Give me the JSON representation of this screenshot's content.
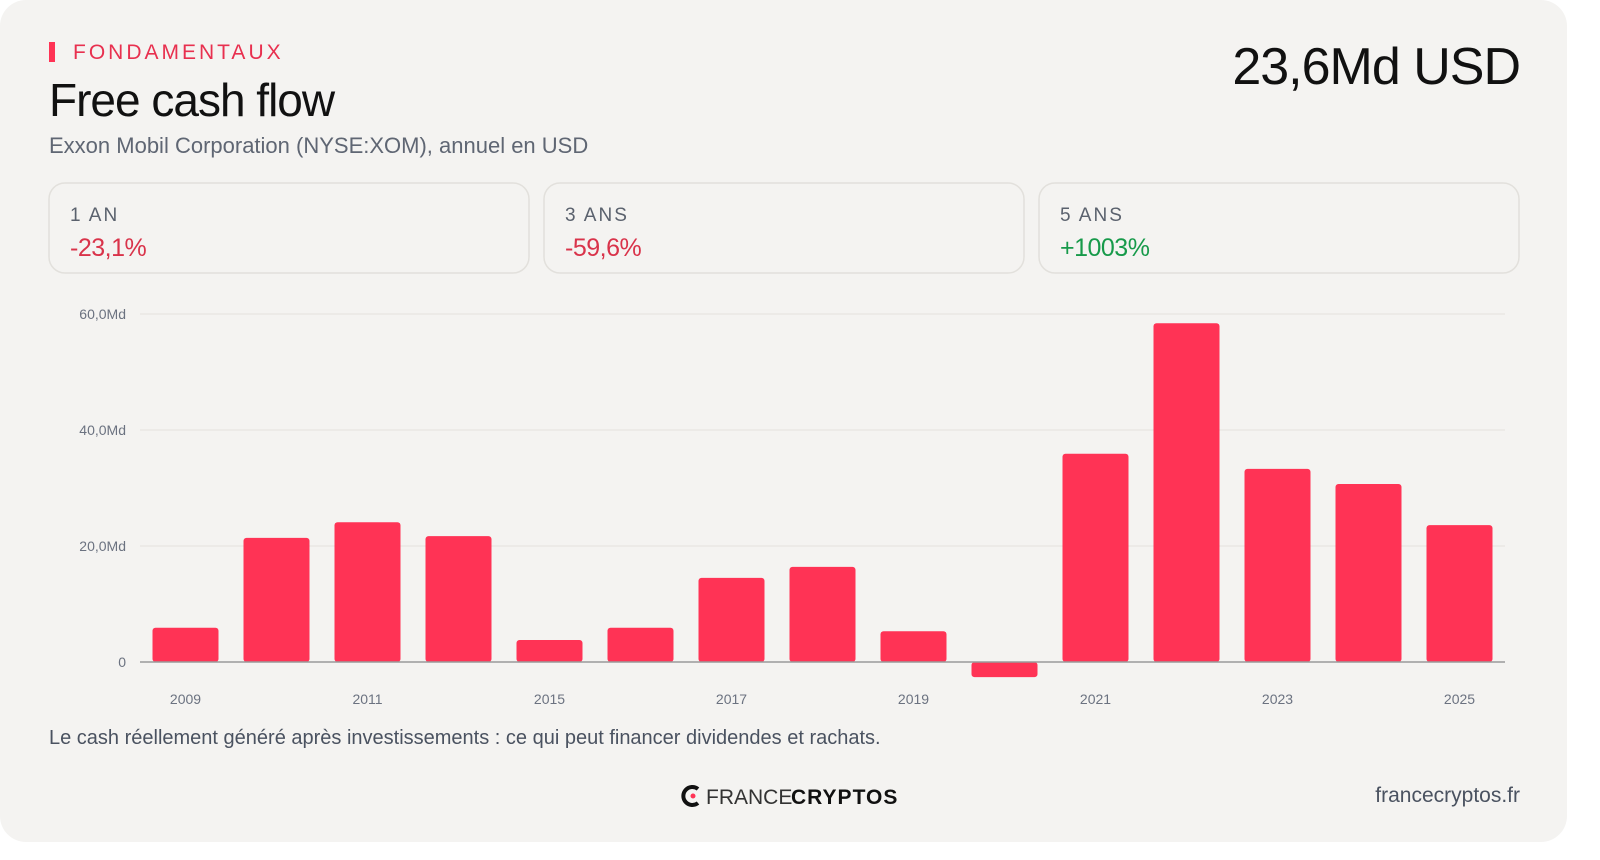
{
  "header": {
    "kicker": "FONDAMENTAUX",
    "headline_value": "23,6Md USD"
  },
  "stats": [
    {
      "label": "1 AN",
      "value": "-23,1%",
      "color": "#d9334a"
    },
    {
      "label": "3 ANS",
      "value": "-59,6%",
      "color": "#d9334a"
    },
    {
      "label": "5 ANS",
      "value": "+1003%",
      "color": "#179a4a"
    }
  ],
  "chart_data": {
    "type": "bar",
    "title": "Free cash flow",
    "subtitle": "Exxon Mobil Corporation (NYSE:XOM), annuel en USD",
    "categories": [
      "2009",
      null,
      "2011",
      null,
      "2015",
      null,
      "2017",
      null,
      "2019",
      null,
      "2021",
      null,
      "2023",
      null,
      "2025"
    ],
    "values": [
      5.9,
      21.4,
      24.1,
      21.7,
      3.8,
      5.9,
      14.5,
      16.4,
      5.3,
      -2.6,
      35.9,
      58.4,
      33.3,
      30.7,
      23.6
    ],
    "color": "#ff3355",
    "ylim": [
      -4,
      62
    ],
    "yticks": [
      0,
      {
        "value": 20,
        "label": "20,0Md"
      },
      {
        "value": 40,
        "label": "40,0Md"
      },
      {
        "value": 60,
        "label": "60,0Md"
      }
    ],
    "grid": true,
    "annotation": "Le cash réellement généré après investissements : ce qui peut financer dividendes et rachats."
  },
  "footer": {
    "brand_light": "FRANCE",
    "brand_bold": "CRYPTOS",
    "site": "francecryptos.fr"
  }
}
